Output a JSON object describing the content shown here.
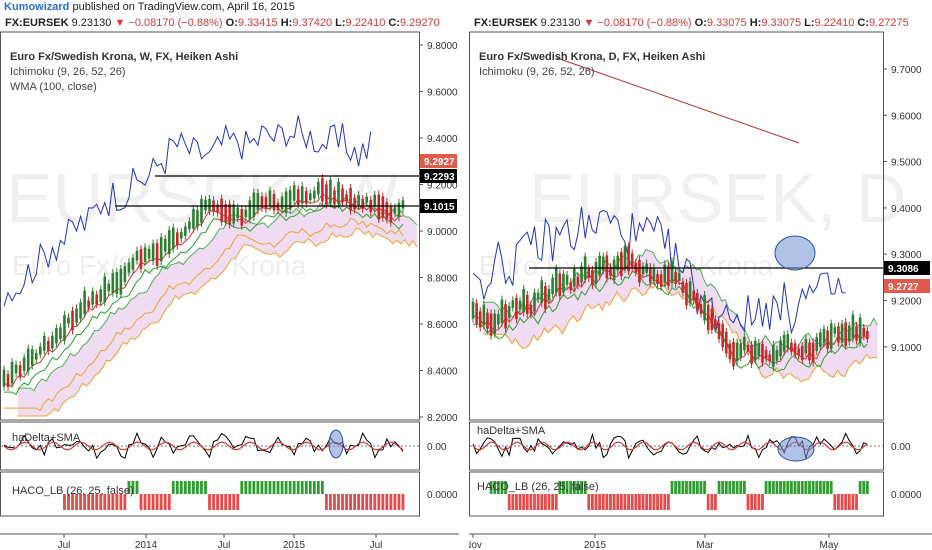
{
  "header": {
    "brand": "Kumowizard",
    "published_text": "published on TradingView.com, April 16, 2015"
  },
  "left": {
    "symbol": "FX:EURSEK",
    "last": "9.23130",
    "change": "▼ −0.08170 (−0.88%)",
    "o_label": "O:",
    "o": "9.33415",
    "h_label": "H:",
    "h": "9.37420",
    "l_label": "L:",
    "l": "9.22410",
    "c_label": "C:",
    "c": "9.29270",
    "title": "Euro Fx/Swedish Krona, W, FX, Heiken Ashi",
    "study1": "Ichimoku (9, 26, 52, 26)",
    "study2": "WMA (100, close)",
    "watermark1": "EURSEK, W",
    "watermark2": "Euro Fx/Swedish Krona",
    "price_ticks": [
      "9.8000",
      "9.6000",
      "9.4000",
      "9.2000",
      "9.0000",
      "8.8000",
      "8.6000",
      "8.4000",
      "8.2000"
    ],
    "price_tags": [
      {
        "label": "9.2927",
        "color": "#e05a4a"
      },
      {
        "label": "9.2293",
        "color": "#000000"
      },
      {
        "label": "9.1015",
        "color": "#000000"
      }
    ],
    "osc1_label": "haDelta+SMA",
    "osc1_tick": "0.00",
    "osc2_label": "HACO_LB (26, 25, false)",
    "osc2_tick": "0.0000",
    "time_ticks": [
      "Jul",
      "2014",
      "Jul",
      "2015",
      "Jul"
    ]
  },
  "right": {
    "symbol": "FX:EURSEK",
    "last": "9.23130",
    "change": "▼ −0.08170 (−0.88%)",
    "o_label": "O:",
    "o": "9.33075",
    "h_label": "H:",
    "h": "9.33075",
    "l_label": "L:",
    "l": "9.22410",
    "c_label": "C:",
    "c": "9.27275",
    "title": "Euro Fx/Swedish Krona, D, FX, Heiken Ashi",
    "study1": "Ichimoku (9, 26, 52, 26)",
    "watermark1": "EURSEK, D",
    "watermark2": "Euro Fx/Swedish Krona",
    "price_ticks": [
      "9.7000",
      "9.6000",
      "9.5000",
      "9.4000",
      "9.3000",
      "9.2000",
      "9.1000"
    ],
    "price_tags": [
      {
        "label": "9.3086",
        "color": "#000000"
      },
      {
        "label": "9.2727",
        "color": "#e05a4a"
      }
    ],
    "osc1_label": "haDelta+SMA",
    "osc1_tick": "0.00",
    "osc2_label": "HACO_LB (26, 25, false)",
    "osc2_tick": "0.0000",
    "time_ticks": [
      "Nov",
      "2015",
      "Mar",
      "May"
    ]
  },
  "colors": {
    "up_candle": "#2e7d32",
    "down_candle": "#c62828",
    "kumo_fill": "#efdcf2",
    "senkou_a": "#4caf50",
    "senkou_b": "#f0a030",
    "tenkan": "#e03030",
    "kijun": "#2e9e2e",
    "chikou": "#2233bb",
    "wma": "#f0a030",
    "trendline": "#b03030",
    "highlight": "#6f8fd0"
  }
}
